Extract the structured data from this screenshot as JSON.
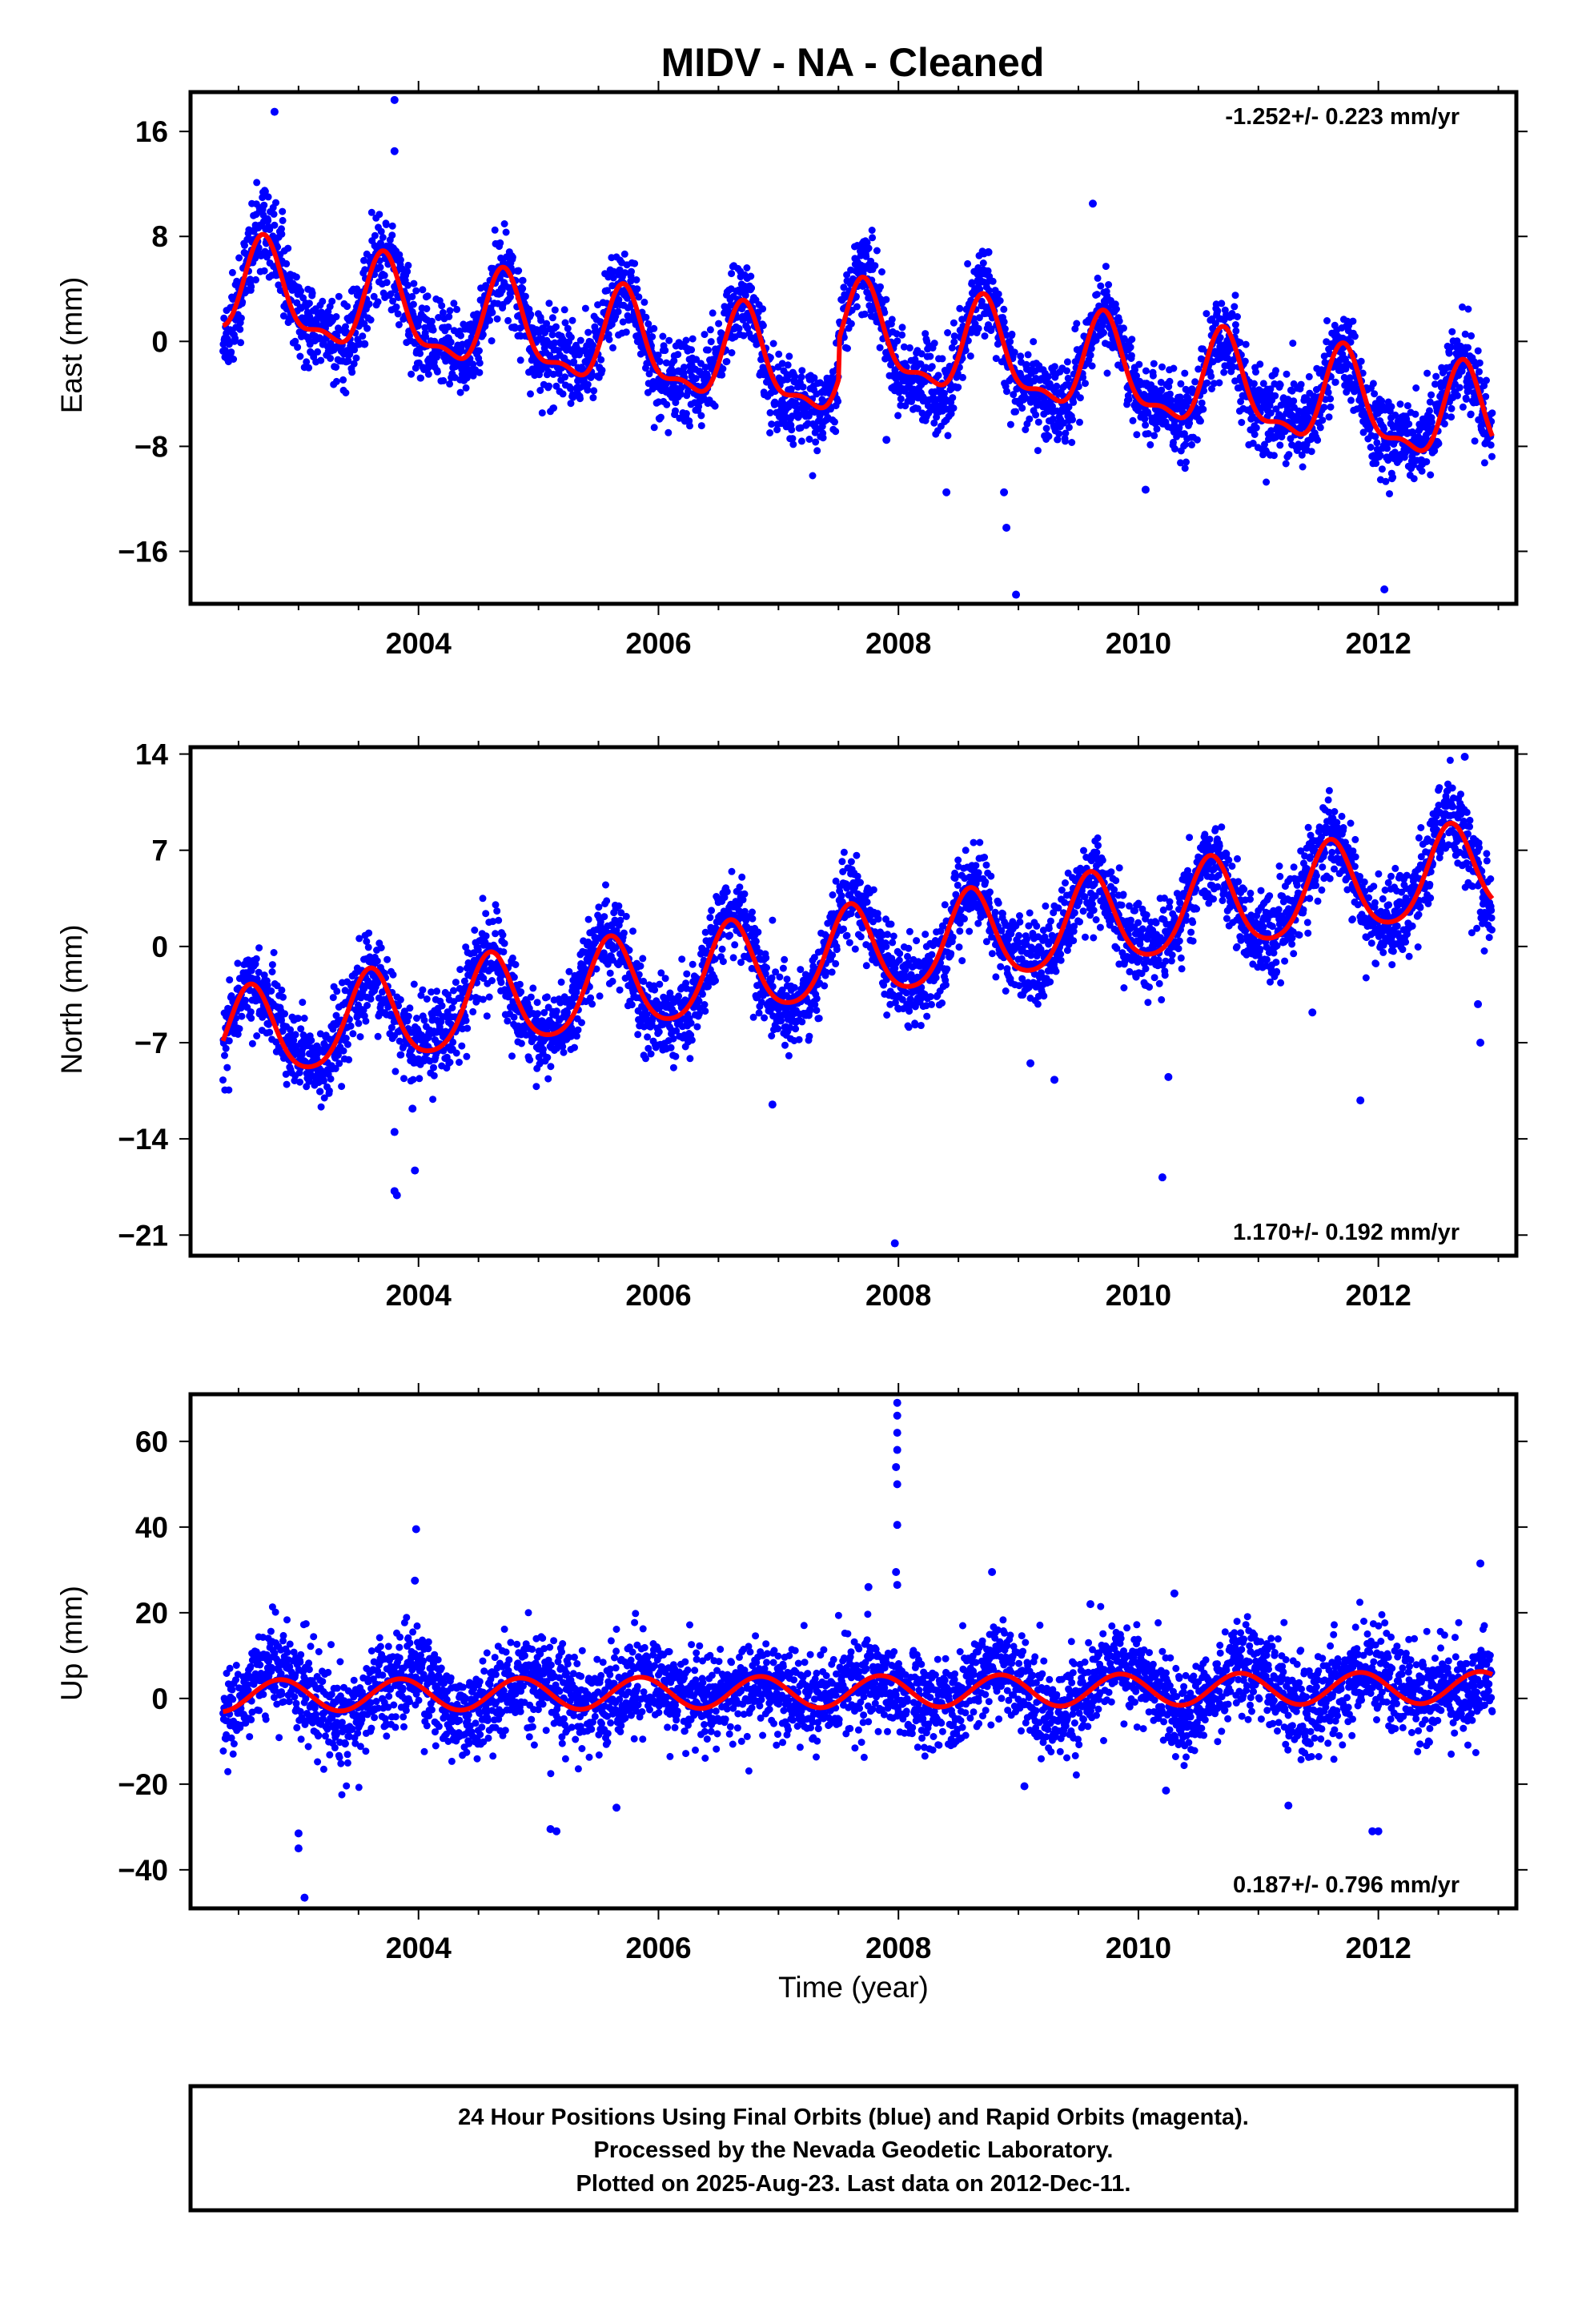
{
  "title": "MIDV  - NA - Cleaned",
  "caption": {
    "lines": [
      "24 Hour Positions Using Final Orbits (blue) and Rapid Orbits (magenta).",
      "Processed by the Nevada Geodetic Laboratory.",
      "Plotted on 2025-Aug-23. Last data on 2012-Dec-11."
    ]
  },
  "colors": {
    "points": "#0000ff",
    "model": "#ff0000",
    "frame": "#000000"
  },
  "chart_data": [
    {
      "type": "scatter",
      "component": "east",
      "ylabel": "East (mm)",
      "rate_label": "-1.252+/- 0.223 mm/yr",
      "rate_position": "top-right",
      "xlim": [
        2002.1,
        2013.15
      ],
      "ylim": [
        -20,
        19
      ],
      "yticks": [
        16,
        8,
        0,
        -8,
        -16
      ],
      "xticks": [
        2004,
        2006,
        2008,
        2010,
        2012
      ],
      "xlabel": "",
      "model": {
        "start": 2002.37,
        "end": 2012.95,
        "offset": 3.9,
        "rate": -1.252,
        "annual": 3.4,
        "annual_peak": 0.72,
        "semiannual": 1.3,
        "semiannual_peak": 0.2,
        "steps": [
          {
            "year": 2007.5,
            "size": 3.0
          }
        ]
      },
      "scatter": {
        "noise": 1.6,
        "seed": 11
      },
      "outliers": [
        {
          "x": 2002.8,
          "y": 17.5
        },
        {
          "x": 2003.8,
          "y": 18.4
        },
        {
          "x": 2003.8,
          "y": 14.5
        },
        {
          "x": 2008.75,
          "y": 6.8
        },
        {
          "x": 2009.62,
          "y": 10.5
        },
        {
          "x": 2008.4,
          "y": -11.5
        },
        {
          "x": 2008.88,
          "y": -11.5
        },
        {
          "x": 2008.9,
          "y": -14.2
        },
        {
          "x": 2008.98,
          "y": -19.3
        },
        {
          "x": 2010.06,
          "y": -11.3
        },
        {
          "x": 2012.05,
          "y": -18.9
        },
        {
          "x": 2007.9,
          "y": -7.5
        },
        {
          "x": 2003.55,
          "y": -0.2
        }
      ]
    },
    {
      "type": "scatter",
      "component": "north",
      "ylabel": "North (mm)",
      "rate_label": "1.170+/- 0.192 mm/yr",
      "rate_position": "bottom-right",
      "xlim": [
        2002.1,
        2013.15
      ],
      "ylim": [
        -22.5,
        14.5
      ],
      "yticks": [
        14,
        7,
        0,
        -7,
        -14,
        -21
      ],
      "xticks": [
        2004,
        2006,
        2008,
        2010,
        2012
      ],
      "xlabel": "",
      "model": {
        "start": 2002.37,
        "end": 2012.95,
        "offset": -6.8,
        "rate": 1.17,
        "annual": 3.3,
        "annual_peak": 0.6,
        "semiannual": 0.5,
        "semiannual_peak": 0.1,
        "steps": []
      },
      "scatter": {
        "noise": 1.5,
        "seed": 23
      },
      "outliers": [
        {
          "x": 2003.8,
          "y": -17.8
        },
        {
          "x": 2003.82,
          "y": -18.1
        },
        {
          "x": 2003.8,
          "y": -13.5
        },
        {
          "x": 2003.97,
          "y": -16.3
        },
        {
          "x": 2003.95,
          "y": -11.8
        },
        {
          "x": 2006.95,
          "y": -11.5
        },
        {
          "x": 2007.97,
          "y": -21.6
        },
        {
          "x": 2010.25,
          "y": -9.5
        },
        {
          "x": 2010.2,
          "y": -16.8
        },
        {
          "x": 2011.85,
          "y": -11.2
        },
        {
          "x": 2011.45,
          "y": -4.8
        },
        {
          "x": 2012.85,
          "y": -7.0
        },
        {
          "x": 2012.83,
          "y": -4.2
        },
        {
          "x": 2012.72,
          "y": 13.8
        },
        {
          "x": 2009.1,
          "y": -8.5
        },
        {
          "x": 2009.3,
          "y": -9.7
        }
      ]
    },
    {
      "type": "scatter",
      "component": "up",
      "ylabel": "Up (mm)",
      "xlabel": "Time (year)",
      "rate_label": "0.187+/- 0.796 mm/yr",
      "rate_position": "bottom-right",
      "xlim": [
        2002.1,
        2013.15
      ],
      "ylim": [
        -49,
        71
      ],
      "yticks": [
        60,
        40,
        20,
        0,
        -20,
        -40
      ],
      "xticks": [
        2004,
        2006,
        2008,
        2010,
        2012
      ],
      "model": {
        "start": 2002.37,
        "end": 2012.95,
        "offset": 0.6,
        "rate": 0.187,
        "annual": 3.7,
        "annual_peak": 0.85,
        "semiannual": 0.0,
        "semiannual_peak": 0.0,
        "steps": []
      },
      "scatter": {
        "noise": 5.5,
        "seed": 37
      },
      "outliers": [
        {
          "x": 2003.05,
          "y": -46.5
        },
        {
          "x": 2003.0,
          "y": -35.0
        },
        {
          "x": 2003.0,
          "y": -31.5
        },
        {
          "x": 2003.98,
          "y": 39.5
        },
        {
          "x": 2003.97,
          "y": 27.5
        },
        {
          "x": 2007.99,
          "y": 69.0
        },
        {
          "x": 2007.99,
          "y": 66.0
        },
        {
          "x": 2007.99,
          "y": 62.0
        },
        {
          "x": 2007.99,
          "y": 58.0
        },
        {
          "x": 2007.98,
          "y": 54.0
        },
        {
          "x": 2007.99,
          "y": 50.0
        },
        {
          "x": 2007.99,
          "y": 40.5
        },
        {
          "x": 2007.98,
          "y": 29.5
        },
        {
          "x": 2007.99,
          "y": 26.5
        },
        {
          "x": 2007.75,
          "y": 26.0
        },
        {
          "x": 2008.78,
          "y": 29.5
        },
        {
          "x": 2012.85,
          "y": 31.5
        },
        {
          "x": 2011.95,
          "y": -31.0
        },
        {
          "x": 2012.0,
          "y": -31.0
        },
        {
          "x": 2005.15,
          "y": -31.0
        },
        {
          "x": 2005.1,
          "y": -30.5
        },
        {
          "x": 2005.65,
          "y": -25.5
        },
        {
          "x": 2011.25,
          "y": -25.0
        },
        {
          "x": 2010.23,
          "y": -21.5
        },
        {
          "x": 2009.05,
          "y": -20.5
        },
        {
          "x": 2010.3,
          "y": 24.5
        },
        {
          "x": 2009.6,
          "y": 22.0
        }
      ]
    }
  ]
}
